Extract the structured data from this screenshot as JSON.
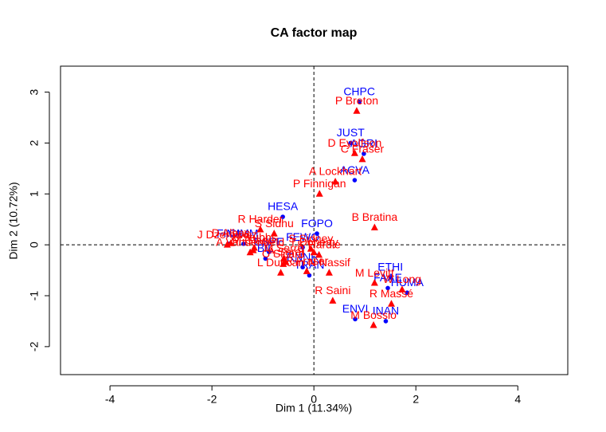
{
  "chart_data": {
    "type": "scatter",
    "title": "CA factor map",
    "xlabel": "Dim 1 (11.34%)",
    "ylabel": "Dim 2 (10.72%)",
    "xlim": [
      -4.97,
      4.98
    ],
    "ylim": [
      -2.55,
      3.51
    ],
    "xticks": [
      -4,
      -2,
      0,
      2,
      4
    ],
    "yticks": [
      -2,
      -1,
      0,
      1,
      2,
      3
    ],
    "series": [
      {
        "color": "#0000ff",
        "marker": "circle",
        "labels": [
          "CHPC",
          "JUST",
          "AGRI",
          "ACVA",
          "HESA",
          "FOPO",
          "FINA",
          "CIMM",
          "ESPE",
          "BIL",
          "FEWO",
          "RNNR",
          "TRAN",
          "ETHI",
          "HUMA",
          "FAAE",
          "ENVI",
          "INAN"
        ],
        "x": [
          0.89,
          0.72,
          0.98,
          0.8,
          -0.61,
          0.06,
          -1.66,
          -1.38,
          -0.88,
          -0.95,
          -0.22,
          -0.22,
          -0.09,
          1.5,
          1.83,
          1.45,
          0.81,
          1.41
        ],
        "y": [
          2.81,
          2.0,
          1.79,
          1.27,
          0.55,
          0.22,
          0.02,
          0.02,
          -0.14,
          -0.27,
          -0.05,
          -0.44,
          -0.6,
          -0.64,
          -0.94,
          -0.85,
          -1.46,
          -1.5
        ]
      },
      {
        "color": "#ff0000",
        "marker": "triangle",
        "labels": [
          "P Breton",
          "C Fraser",
          "A Lockhart",
          "P Finnigan",
          "D Eyolfson",
          "B Bratina",
          "R Harder",
          "S Sidhu",
          "D Albas",
          "J Dzerowicz",
          "M Gladu",
          "A Vandenbeld",
          "S Stubbs",
          "S Sidney",
          "T Doherty",
          "K Hardie",
          "M Serré",
          "A Sarai",
          "C Sicard",
          "R Fraser",
          "N Nassif",
          "M Levitt",
          "W Long",
          "R Saini",
          "R Massé",
          "L Duncan",
          "M Bossio"
        ],
        "x": [
          0.84,
          0.95,
          0.42,
          0.11,
          0.8,
          1.19,
          -1.05,
          -0.78,
          -1.63,
          -1.7,
          -1.19,
          -1.25,
          -1.17,
          -0.06,
          0.0,
          0.1,
          -0.59,
          -0.55,
          -0.6,
          -0.14,
          0.3,
          1.19,
          1.73,
          0.37,
          1.52,
          -0.65,
          1.17
        ],
        "y": [
          2.63,
          1.68,
          1.24,
          1.0,
          1.8,
          0.34,
          0.3,
          0.22,
          0.03,
          0.0,
          -0.11,
          -0.15,
          -0.06,
          -0.08,
          -0.15,
          -0.2,
          -0.27,
          -0.34,
          -0.38,
          -0.52,
          -0.55,
          -0.75,
          -0.88,
          -1.1,
          -1.16,
          -0.55,
          -1.58
        ]
      }
    ]
  }
}
